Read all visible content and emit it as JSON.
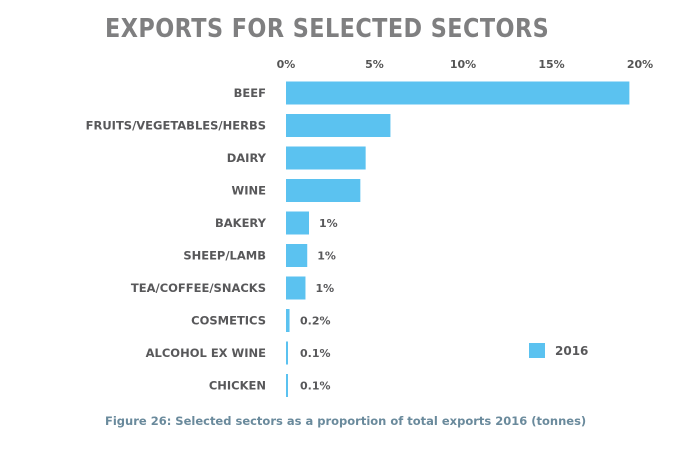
{
  "chart_data": {
    "type": "bar",
    "orientation": "horizontal",
    "title": "EXPORTS FOR SELECTED SECTORS",
    "caption": "Figure 26: Selected sectors as a proportion of total exports 2016 (tonnes)",
    "categories": [
      "BEEF",
      "FRUITS/VEGETABLES/HERBS",
      "DAIRY",
      "WINE",
      "BAKERY",
      "SHEEP/LAMB",
      "TEA/COFFEE/SNACKS",
      "COSMETICS",
      "ALCOHOL EX WINE",
      "CHICKEN"
    ],
    "series": [
      {
        "name": "2016",
        "color": "#5bc2f0",
        "values": [
          19.4,
          5.9,
          4.5,
          4.2,
          1.3,
          1.2,
          1.1,
          0.2,
          0.1,
          0.1
        ],
        "data_labels": [
          "",
          "",
          "",
          "",
          "1%",
          "1%",
          "1%",
          "0.2%",
          "0.1%",
          "0.1%"
        ]
      }
    ],
    "xticks": [
      "0%",
      "5%",
      "10%",
      "15%",
      "20%"
    ],
    "xlim": [
      0,
      20
    ],
    "grid": false,
    "legend_position": "bottom-right",
    "colors": {
      "bar": "#5bc2f0",
      "title": "#7f7f80",
      "caption": "#6a8a9c",
      "text": "#58585a"
    }
  }
}
